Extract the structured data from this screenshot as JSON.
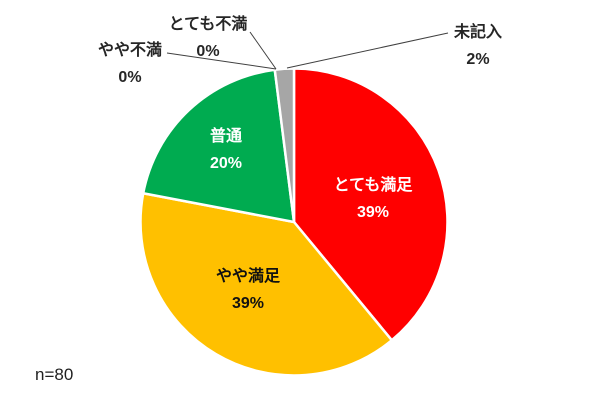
{
  "chart_data": {
    "type": "pie",
    "title": "",
    "footnote": "n=80",
    "legend": "none",
    "direction": "clockwise",
    "start_angle_deg": 0,
    "unit": "percent",
    "categories": [
      "とても満足",
      "やや満足",
      "普通",
      "やや不満",
      "とても不満",
      "未記入"
    ],
    "values": [
      39,
      39,
      20,
      0,
      0,
      2
    ],
    "segments": [
      {
        "label": "とても満足",
        "value": 39,
        "pct": "39%",
        "color": "#FF0000",
        "label_placement": "inside"
      },
      {
        "label": "やや満足",
        "value": 39,
        "pct": "39%",
        "color": "#FFC000",
        "label_placement": "inside"
      },
      {
        "label": "普通",
        "value": 20,
        "pct": "20%",
        "color": "#00AB50",
        "label_placement": "inside"
      },
      {
        "label": "やや不満",
        "value": 0,
        "pct": "0%",
        "label_placement": "outside"
      },
      {
        "label": "とても不満",
        "value": 0,
        "pct": "0%",
        "label_placement": "outside"
      },
      {
        "label": "未記入",
        "value": 2,
        "pct": "2%",
        "color": "#A6A6A6",
        "label_placement": "outside"
      }
    ],
    "slice_border_color": "#FFFFFF",
    "leader_line_color": "#404040"
  }
}
